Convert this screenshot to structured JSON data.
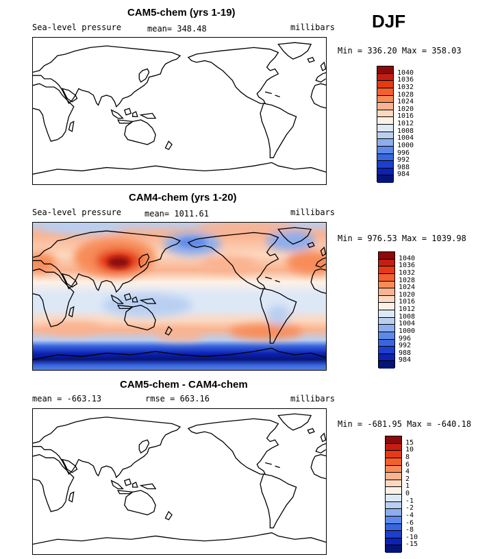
{
  "season": "DJF",
  "panels": [
    {
      "title": "CAM5-chem (yrs 1-19)",
      "variable": "Sea-level pressure",
      "stat": "mean= 348.48",
      "units": "millibars",
      "minmax": "Min = 336.20 Max = 358.03",
      "colorbar": {
        "labels": [
          "1040",
          "1036",
          "1032",
          "1028",
          "1024",
          "1020",
          "1016",
          "1012",
          "1008",
          "1004",
          "1000",
          "996",
          "992",
          "988",
          "984"
        ],
        "colors": [
          "#8b0a0a",
          "#c41e12",
          "#e63a16",
          "#f2602e",
          "#f78c58",
          "#fab390",
          "#fcd8c0",
          "#fdf1e6",
          "#dde8f7",
          "#b9cff2",
          "#8cadee",
          "#5f89e8",
          "#3966df",
          "#1c3fd0",
          "#0c22b4",
          "#061478"
        ]
      }
    },
    {
      "title": "CAM4-chem (yrs 1-20)",
      "variable": "Sea-level pressure",
      "stat": "mean= 1011.61",
      "units": "millibars",
      "minmax": "Min = 976.53 Max = 1039.98",
      "colorbar": {
        "labels": [
          "1040",
          "1036",
          "1032",
          "1028",
          "1024",
          "1020",
          "1016",
          "1012",
          "1008",
          "1004",
          "1000",
          "996",
          "992",
          "988",
          "984"
        ],
        "colors": [
          "#8b0a0a",
          "#c41e12",
          "#e63a16",
          "#f2602e",
          "#f78c58",
          "#fab390",
          "#fcd8c0",
          "#fdf1e6",
          "#dde8f7",
          "#b9cff2",
          "#8cadee",
          "#5f89e8",
          "#3966df",
          "#1c3fd0",
          "#0c22b4",
          "#061478"
        ]
      }
    },
    {
      "title": "CAM5-chem - CAM4-chem",
      "variable": "",
      "stat": "mean = -663.13",
      "stat2": "rmse = 663.16",
      "units": "millibars",
      "minmax": "Min = -681.95 Max = -640.18",
      "colorbar": {
        "labels": [
          "15",
          "10",
          "8",
          "6",
          "4",
          "2",
          "1",
          "0",
          "-1",
          "-2",
          "-4",
          "-6",
          "-8",
          "-10",
          "-15"
        ],
        "colors": [
          "#8b0a0a",
          "#c41e12",
          "#e63a16",
          "#f2602e",
          "#f78c58",
          "#fab390",
          "#fcd8c0",
          "#fdf1e6",
          "#dde8f7",
          "#b9cff2",
          "#8cadee",
          "#5f89e8",
          "#3966df",
          "#1c3fd0",
          "#0c22b4",
          "#061478"
        ]
      }
    }
  ]
}
